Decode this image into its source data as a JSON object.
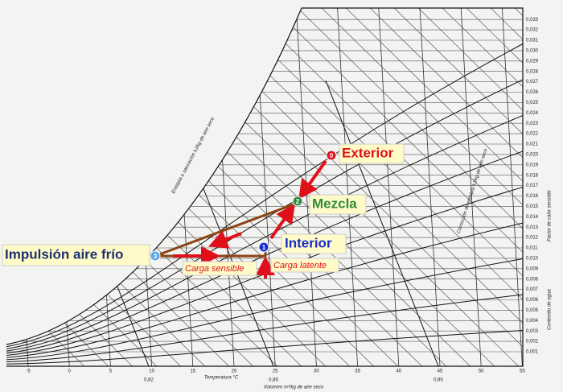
{
  "annotations": {
    "points": [
      {
        "id": "0",
        "label": "Exterior"
      },
      {
        "id": "1",
        "label": "Interior"
      },
      {
        "id": "2",
        "label": "Mezcla"
      },
      {
        "id": "3",
        "label": "Impulsión aire frío"
      }
    ],
    "loads": {
      "latent": "Carga latente",
      "sensible": "Carga sensible"
    }
  },
  "axes": {
    "temperature": {
      "title": "Temperatura °C",
      "ticks": [
        "-5",
        "0",
        "5",
        "10",
        "15",
        "20",
        "25",
        "30",
        "35",
        "40",
        "45",
        "50",
        "55"
      ]
    },
    "volume": {
      "title": "Volumen m³/kg de aire seco",
      "ticks": [
        "0,82",
        "0,85",
        "0,90"
      ]
    },
    "humidity": {
      "title": "Contenido de agua",
      "ticks": [
        "0,001",
        "0,002",
        "0,003",
        "0,004",
        "0,005",
        "0,006",
        "0,007",
        "0,008",
        "0,009",
        "0,010",
        "0,011",
        "0,012",
        "0,013",
        "0,014",
        "0,015",
        "0,016",
        "0,017",
        "0,018",
        "0,019",
        "0,020",
        "0,021",
        "0,022",
        "0,023",
        "0,024",
        "0,025",
        "0,026",
        "0,027",
        "0,028",
        "0,029",
        "0,030",
        "0,031",
        "0,032",
        "0,033"
      ]
    },
    "enthalpy": {
      "title": "Entalpía a saturación kJ/kg de aire seco"
    },
    "correction": {
      "title": "Corrección de entalpía kJ/kg de aire seco"
    },
    "shf": {
      "title": "Factor de calor sensible"
    }
  }
}
